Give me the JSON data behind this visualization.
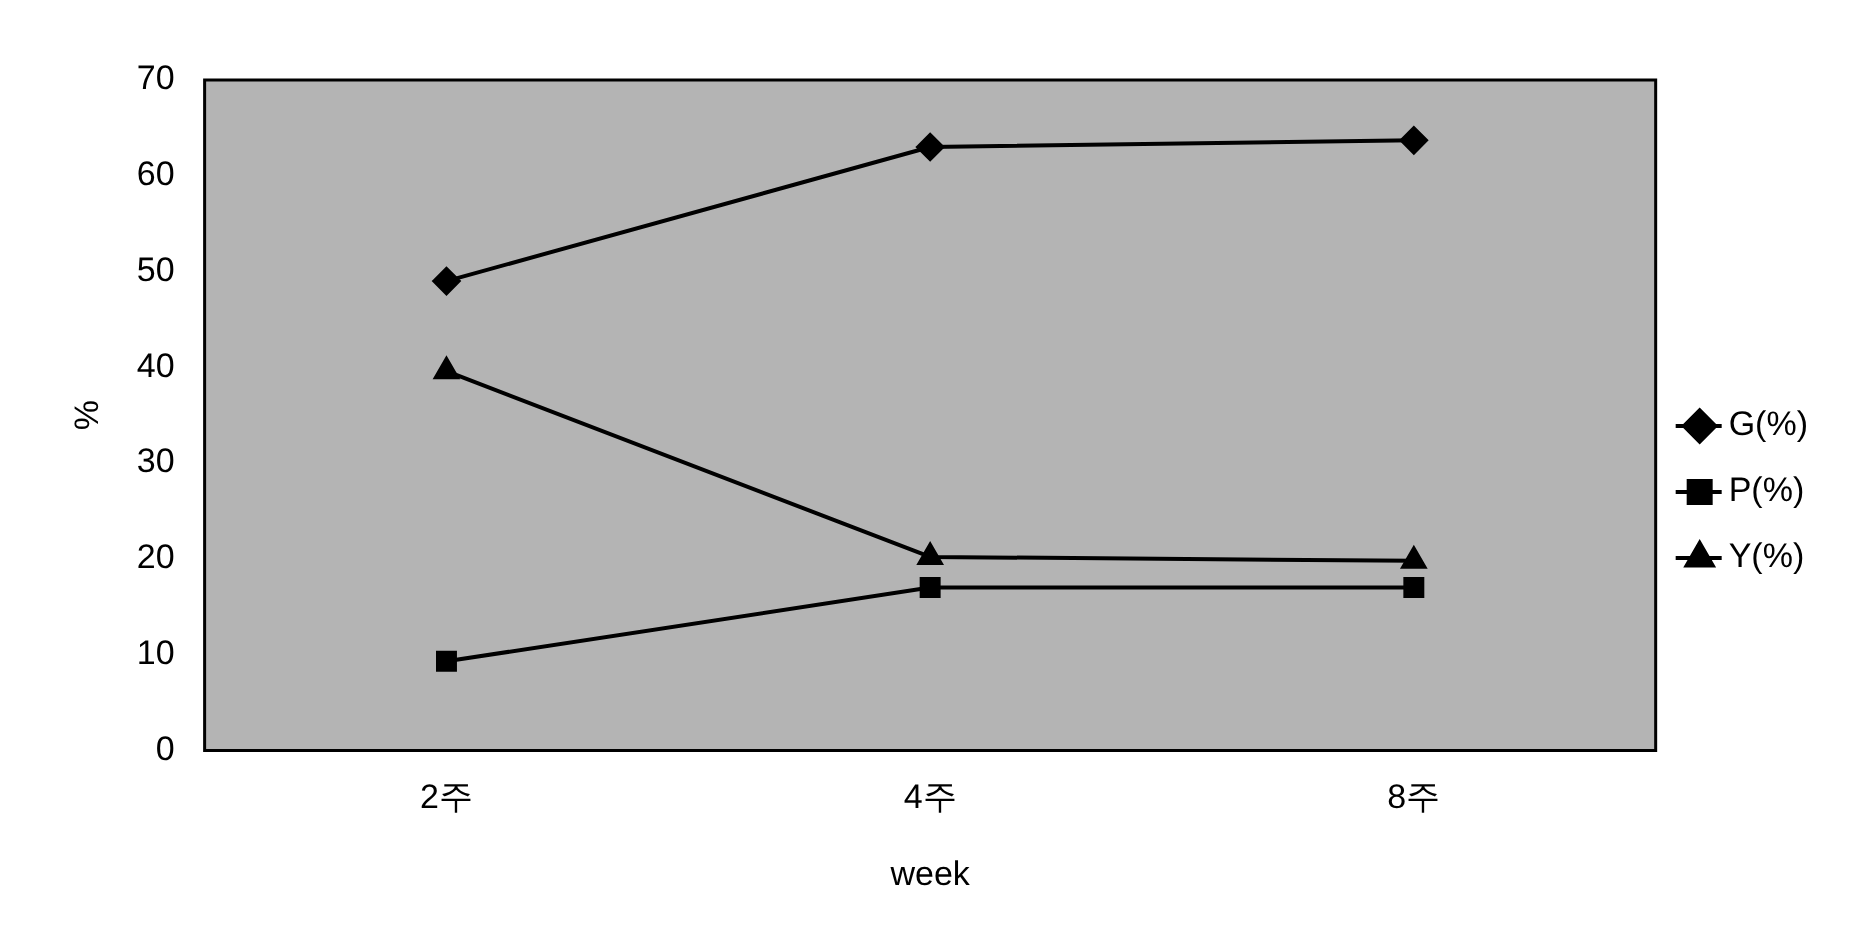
{
  "chart_data": {
    "type": "line",
    "xlabel": "week",
    "ylabel": "%",
    "categories": [
      "2주",
      "4주",
      "8주"
    ],
    "series": [
      {
        "name": "G(%)",
        "color": "#000000",
        "marker": "diamond",
        "values": [
          49,
          63,
          63.7
        ]
      },
      {
        "name": "P(%)",
        "color": "#000000",
        "marker": "square",
        "values": [
          9.3,
          17,
          17
        ]
      },
      {
        "name": "Y(%)",
        "color": "#000000",
        "marker": "triangle",
        "values": [
          39.6,
          20.2,
          19.8
        ]
      }
    ],
    "ylim": [
      0,
      70
    ],
    "yticks": [
      0,
      10,
      20,
      30,
      40,
      50,
      60,
      70
    ],
    "grid": false,
    "legend": "right",
    "line_style": "solid"
  }
}
